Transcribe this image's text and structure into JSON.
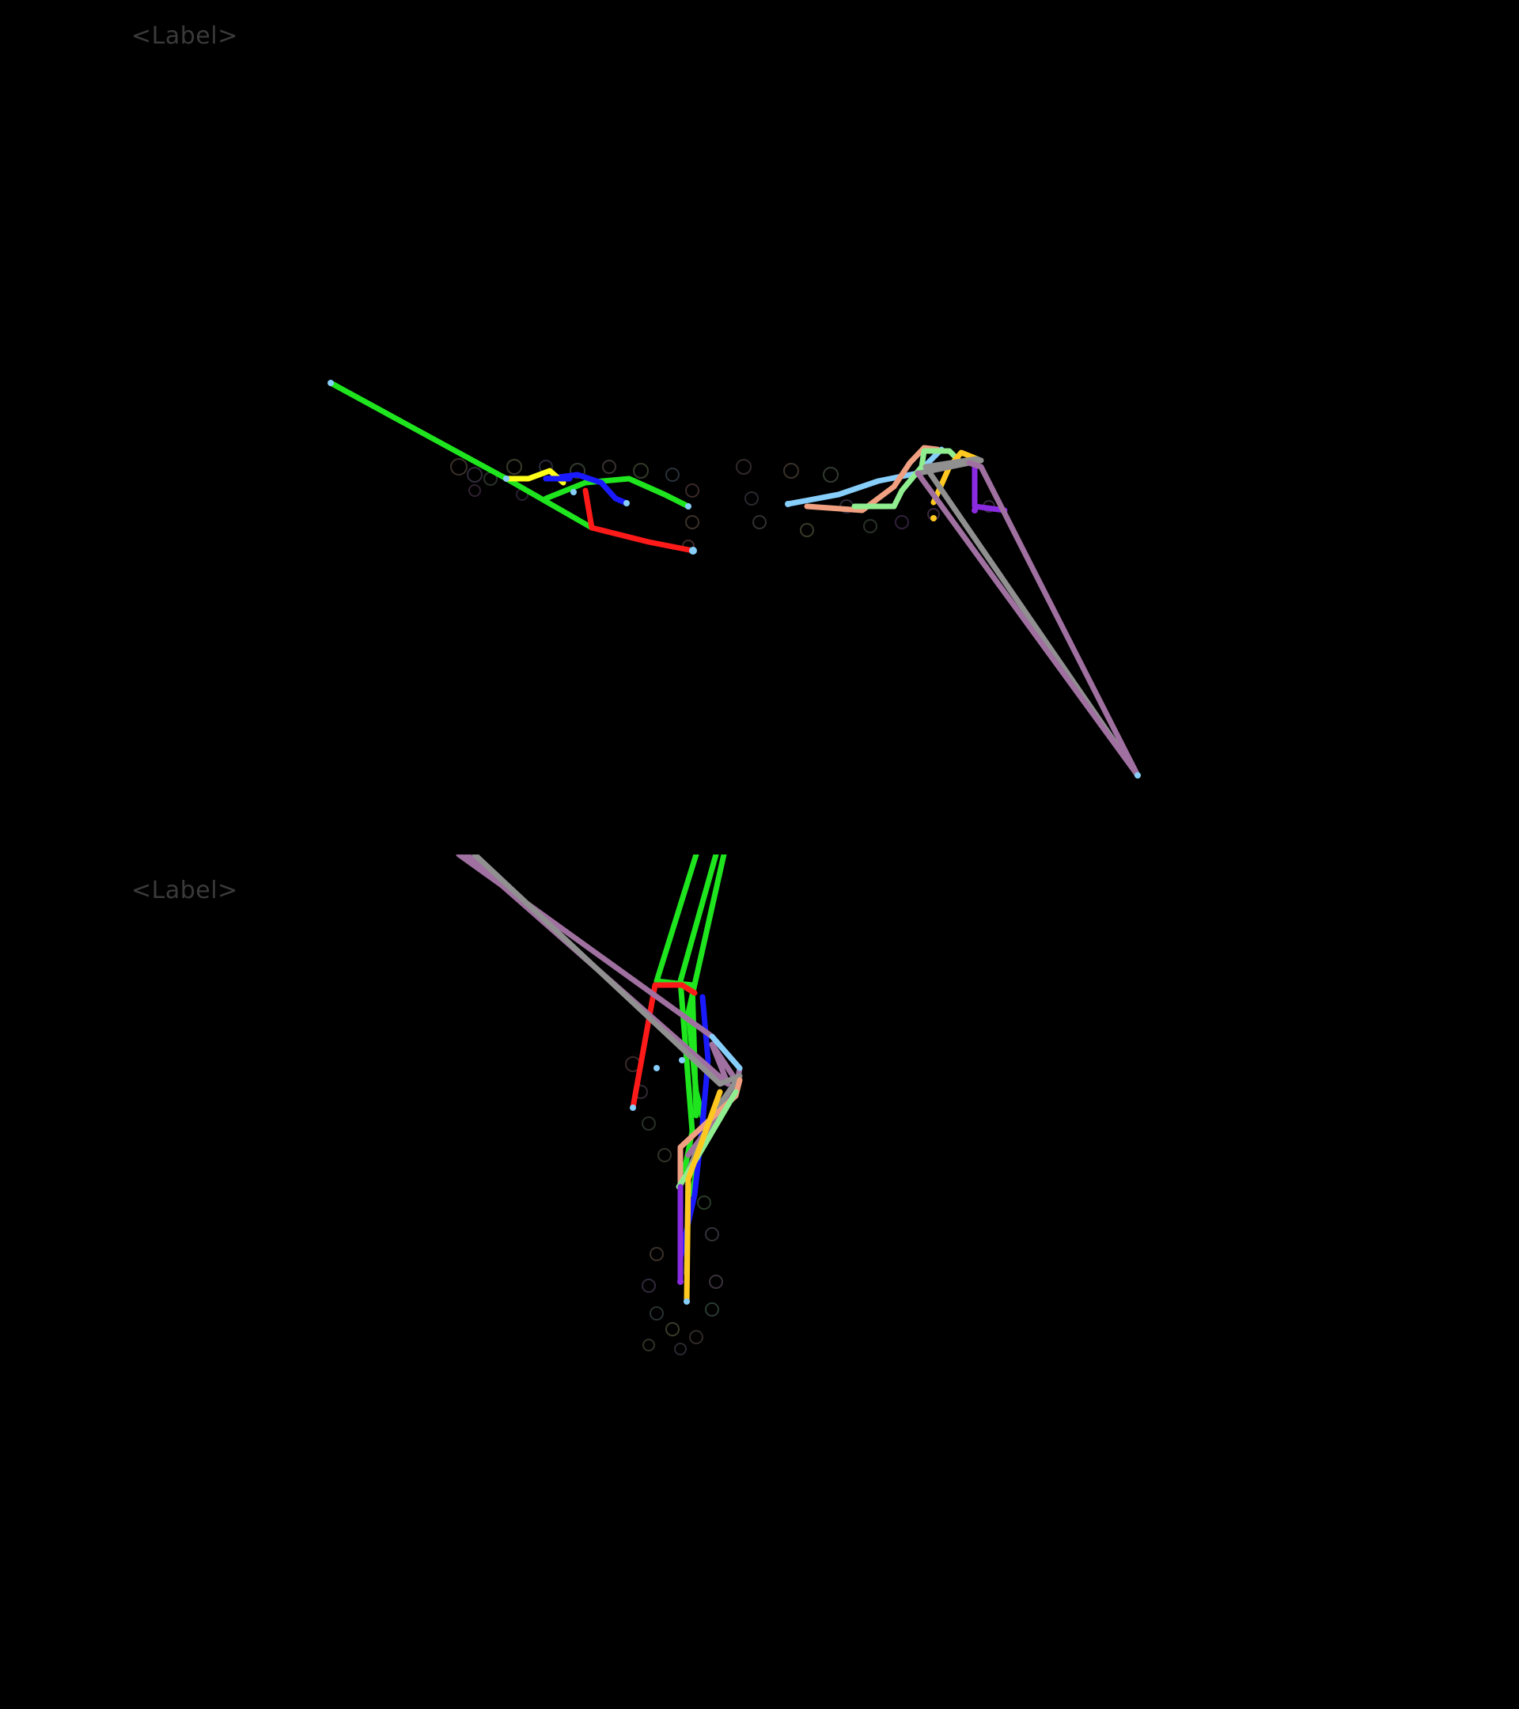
{
  "panels": [
    {
      "label": "<Label>",
      "view": "side-view",
      "colors": {
        "green": "#1fe51f",
        "red": "#ff1a1a",
        "blue": "#1a1aff",
        "yellow": "#ffff1a",
        "light_blue": "#87cefa",
        "salmon": "#f0a080",
        "light_green": "#90ee90",
        "gold": "#ffc820",
        "purple": "#8a2be2",
        "mauve": "#a070a0",
        "gray": "#909090"
      }
    },
    {
      "label": "<Label>",
      "view": "top-view",
      "colors": {
        "green": "#1fe51f",
        "red": "#ff1a1a",
        "blue": "#1a1aff",
        "yellow": "#ffc820",
        "light_blue": "#87cefa",
        "salmon": "#f0a080",
        "light_green": "#90ee90",
        "purple": "#8a2be2",
        "mauve": "#a070a0",
        "gray": "#909090"
      }
    }
  ]
}
